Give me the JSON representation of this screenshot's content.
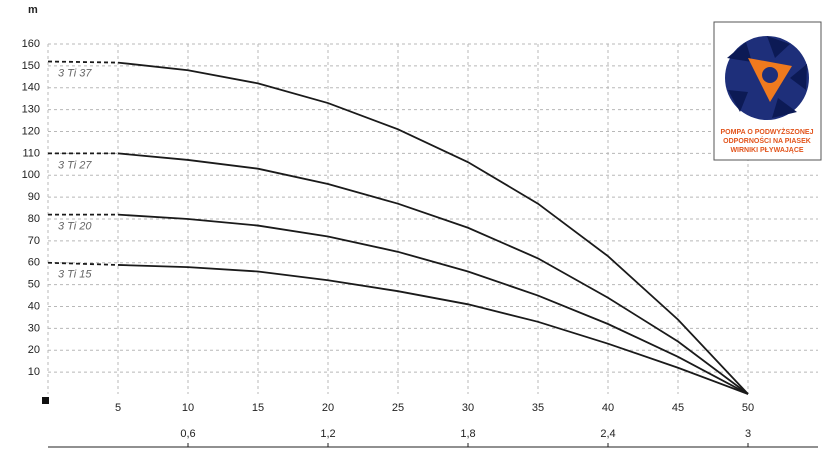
{
  "chart_data": {
    "type": "line",
    "y_unit": "m",
    "x": [
      0,
      5,
      10,
      15,
      20,
      25,
      30,
      35,
      40,
      45,
      50
    ],
    "series": [
      {
        "name": "3 Ti 37",
        "color": "#1a1a1a",
        "values": [
          152,
          151.5,
          148,
          142,
          133,
          121,
          106,
          87,
          63,
          34,
          0
        ]
      },
      {
        "name": "3 Ti 27",
        "color": "#1a1a1a",
        "values": [
          110,
          110,
          107,
          103,
          96,
          87,
          76,
          62,
          44,
          24,
          0
        ]
      },
      {
        "name": "3 Ti 20",
        "color": "#1a1a1a",
        "values": [
          82,
          82,
          80,
          77,
          72,
          65,
          56,
          45,
          32,
          17,
          0
        ]
      },
      {
        "name": "3 Ti 15",
        "color": "#1a1a1a",
        "values": [
          60,
          59,
          58,
          56,
          52,
          47,
          41,
          33,
          23,
          12,
          0
        ]
      }
    ],
    "xlim": [
      0,
      55
    ],
    "xticks": [
      5,
      10,
      15,
      20,
      25,
      30,
      35,
      40,
      45,
      50
    ],
    "x2lim": [
      0,
      3.3
    ],
    "x2ticks": [
      {
        "value": 0.6,
        "label": "0,6"
      },
      {
        "value": 1.2,
        "label": "1,2"
      },
      {
        "value": 1.8,
        "label": "1,8"
      },
      {
        "value": 2.4,
        "label": "2,4"
      },
      3
    ],
    "ylim": [
      0,
      160
    ],
    "yticks": [
      10,
      20,
      30,
      40,
      50,
      60,
      70,
      80,
      90,
      100,
      110,
      120,
      130,
      140,
      150,
      160
    ],
    "grid": true,
    "badge": [
      "POMPA O PODWYŻSZONEJ",
      "ODPORNOŚCI NA PIASEK",
      "WIRNIKI PŁYWAJĄCE"
    ]
  }
}
